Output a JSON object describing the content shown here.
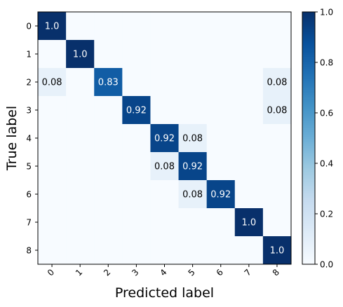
{
  "chart_data": {
    "type": "heatmap",
    "title": "",
    "xlabel": "Predicted label",
    "ylabel": "True label",
    "x_categories": [
      "0",
      "1",
      "2",
      "3",
      "4",
      "5",
      "6",
      "7",
      "8"
    ],
    "y_categories": [
      "0",
      "1",
      "2",
      "3",
      "4",
      "5",
      "6",
      "7",
      "8"
    ],
    "matrix": [
      [
        1.0,
        0,
        0,
        0,
        0,
        0,
        0,
        0,
        0
      ],
      [
        0,
        1.0,
        0,
        0,
        0,
        0,
        0,
        0,
        0
      ],
      [
        0.08,
        0,
        0.83,
        0,
        0,
        0,
        0,
        0,
        0.08
      ],
      [
        0,
        0,
        0,
        0.92,
        0,
        0,
        0,
        0,
        0.08
      ],
      [
        0,
        0,
        0,
        0,
        0.92,
        0.08,
        0,
        0,
        0
      ],
      [
        0,
        0,
        0,
        0,
        0.08,
        0.92,
        0,
        0,
        0
      ],
      [
        0,
        0,
        0,
        0,
        0,
        0.08,
        0.92,
        0,
        0
      ],
      [
        0,
        0,
        0,
        0,
        0,
        0,
        0,
        1.0,
        0
      ],
      [
        0,
        0,
        0,
        0,
        0,
        0,
        0,
        0,
        1.0
      ]
    ],
    "cell_labels": [
      [
        "1.0",
        "",
        "",
        "",
        "",
        "",
        "",
        "",
        ""
      ],
      [
        "",
        "1.0",
        "",
        "",
        "",
        "",
        "",
        "",
        ""
      ],
      [
        "0.08",
        "",
        "0.83",
        "",
        "",
        "",
        "",
        "",
        "0.08"
      ],
      [
        "",
        "",
        "",
        "0.92",
        "",
        "",
        "",
        "",
        "0.08"
      ],
      [
        "",
        "",
        "",
        "",
        "0.92",
        "0.08",
        "",
        "",
        ""
      ],
      [
        "",
        "",
        "",
        "",
        "0.08",
        "0.92",
        "",
        "",
        ""
      ],
      [
        "",
        "",
        "",
        "",
        "",
        "0.08",
        "0.92",
        "",
        ""
      ],
      [
        "",
        "",
        "",
        "",
        "",
        "",
        "",
        "1.0",
        ""
      ],
      [
        "",
        "",
        "",
        "",
        "",
        "",
        "",
        "",
        "1.0"
      ]
    ],
    "colormap": "Blues",
    "color_range": [
      0.0,
      1.0
    ],
    "colorbar_ticks": [
      "0.0",
      "0.2",
      "0.4",
      "0.6",
      "0.8",
      "1.0"
    ],
    "grid": false
  }
}
